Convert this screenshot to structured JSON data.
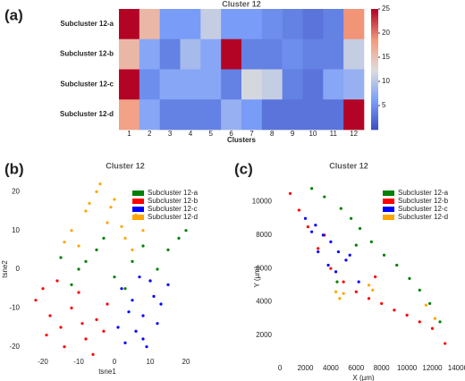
{
  "chart_data": [
    {
      "type": "heatmap",
      "panel_label": "(a)",
      "title": "Cluster 12",
      "xlabel": "Clusters",
      "categories": [
        "1",
        "2",
        "3",
        "4",
        "5",
        "6",
        "7",
        "8",
        "9",
        "10",
        "11",
        "12"
      ],
      "rows": [
        "Subcluster 12-a",
        "Subcluster 12-b",
        "Subcluster 12-c",
        "Subcluster 12-d"
      ],
      "values": [
        [
          25,
          16,
          6,
          6,
          11,
          6,
          6,
          5,
          4,
          3,
          4,
          19
        ],
        [
          16,
          7,
          4,
          9,
          7,
          25,
          4,
          4,
          5,
          4,
          4,
          11
        ],
        [
          25,
          5,
          7,
          7,
          7,
          4,
          12,
          11,
          4,
          3,
          7,
          8
        ],
        [
          18,
          7,
          4,
          4,
          4,
          8,
          6,
          3,
          3,
          3,
          3,
          25
        ]
      ],
      "colormap": "coolwarm",
      "clim": [
        0,
        25
      ],
      "colorbar_ticks": [
        5,
        10,
        15,
        20,
        25
      ]
    },
    {
      "type": "scatter",
      "panel_label": "(b)",
      "title": "Cluster 12",
      "xlabel": "tsne1",
      "ylabel": "tsne2",
      "xlim": [
        -26,
        25
      ],
      "ylim": [
        -24,
        24
      ],
      "xticks": [
        -20,
        -10,
        0,
        10,
        20
      ],
      "yticks": [
        -20,
        -10,
        0,
        10,
        20
      ],
      "legend": "upper right",
      "series": [
        {
          "name": "Subcluster 12-a",
          "color": "#008000",
          "x": [
            -15,
            -10,
            -5,
            0,
            5,
            10,
            15,
            18,
            -12,
            -3,
            8,
            12,
            3,
            -8,
            20
          ],
          "y": [
            3,
            0,
            5,
            -2,
            2,
            -3,
            5,
            8,
            -4,
            8,
            6,
            0,
            -5,
            2,
            10
          ]
        },
        {
          "name": "Subcluster 12-b",
          "color": "#ff0000",
          "x": [
            -22,
            -18,
            -15,
            -12,
            -8,
            -5,
            -2,
            -20,
            -14,
            -10,
            -6,
            -16,
            -3,
            -9,
            -19
          ],
          "y": [
            -8,
            -12,
            -15,
            -10,
            -18,
            -13,
            -9,
            -5,
            -20,
            -6,
            -22,
            -3,
            -16,
            -14,
            -17
          ]
        },
        {
          "name": "Subcluster 12-c",
          "color": "#0000ff",
          "x": [
            2,
            5,
            8,
            10,
            13,
            6,
            3,
            9,
            12,
            4,
            7,
            11,
            1,
            15,
            8
          ],
          "y": [
            -5,
            -8,
            -12,
            -3,
            -9,
            -16,
            -19,
            -20,
            -14,
            -11,
            -2,
            -7,
            -15,
            -4,
            -18
          ]
        },
        {
          "name": "Subcluster 12-d",
          "color": "#ffa500",
          "x": [
            -12,
            -8,
            -5,
            -2,
            0,
            3,
            6,
            -10,
            -4,
            2,
            -14,
            -7,
            5,
            -1,
            8
          ],
          "y": [
            10,
            15,
            20,
            12,
            18,
            8,
            14,
            6,
            22,
            11,
            7,
            17,
            5,
            16,
            10
          ]
        }
      ]
    },
    {
      "type": "scatter",
      "panel_label": "(c)",
      "title": "Cluster 12",
      "xlabel": "X (µm)",
      "ylabel": "Y (µm)",
      "xlim": [
        -500,
        14500
      ],
      "ylim": [
        0,
        11000
      ],
      "xticks": [
        0,
        2000,
        4000,
        6000,
        8000,
        10000,
        12000,
        14000
      ],
      "yticks": [
        2000,
        4000,
        6000,
        8000,
        10000
      ],
      "legend": "upper right",
      "series": [
        {
          "name": "Subcluster 12-a",
          "color": "#008000",
          "x": [
            2500,
            3500,
            4800,
            5600,
            6300,
            7200,
            8200,
            9200,
            10200,
            11000,
            11800,
            12600,
            4500,
            6000
          ],
          "y": [
            10800,
            10300,
            9600,
            9000,
            8400,
            7600,
            6800,
            6200,
            5400,
            4700,
            3900,
            2800,
            5200,
            7400
          ]
        },
        {
          "name": "Subcluster 12-b",
          "color": "#ff0000",
          "x": [
            800,
            1500,
            2200,
            3000,
            4000,
            5000,
            6000,
            7000,
            8000,
            9000,
            10000,
            11000,
            12000,
            13000,
            3500,
            7500
          ],
          "y": [
            10500,
            9500,
            8500,
            7200,
            6000,
            5200,
            4600,
            4200,
            3900,
            3500,
            3200,
            2800,
            2400,
            1500,
            8000,
            5500
          ]
        },
        {
          "name": "Subcluster 12-c",
          "color": "#0000ff",
          "x": [
            2000,
            2800,
            3400,
            4000,
            4600,
            5200,
            3000,
            3800,
            4400,
            5500,
            2500,
            6200
          ],
          "y": [
            9000,
            8600,
            8000,
            7600,
            7000,
            6500,
            7000,
            6200,
            5800,
            6800,
            8200,
            5200
          ]
        },
        {
          "name": "Subcluster 12-d",
          "color": "#ffa500",
          "x": [
            4400,
            4700,
            5000,
            7000,
            7300,
            11500,
            12200
          ],
          "y": [
            4600,
            4200,
            4500,
            5000,
            4700,
            3800,
            3000
          ]
        }
      ]
    }
  ]
}
